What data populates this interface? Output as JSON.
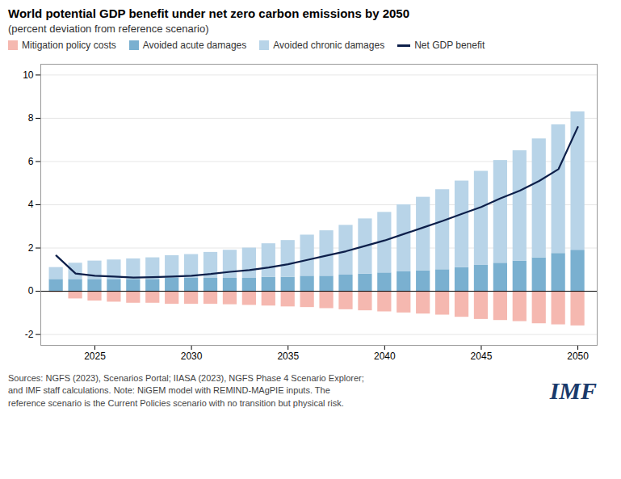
{
  "chart_data": {
    "type": "bar",
    "title": "World potential GDP benefit under net zero carbon emissions by 2050",
    "subtitle": "(percent deviation from reference scenario)",
    "x": [
      2023,
      2024,
      2025,
      2026,
      2027,
      2028,
      2029,
      2030,
      2031,
      2032,
      2033,
      2034,
      2035,
      2036,
      2037,
      2038,
      2039,
      2040,
      2041,
      2042,
      2043,
      2044,
      2045,
      2046,
      2047,
      2048,
      2049,
      2050
    ],
    "series": [
      {
        "name": "Mitigation policy costs",
        "type": "bar",
        "color": "#f5b8b0",
        "values": [
          -0.05,
          -0.35,
          -0.45,
          -0.5,
          -0.55,
          -0.55,
          -0.6,
          -0.6,
          -0.6,
          -0.62,
          -0.65,
          -0.68,
          -0.72,
          -0.75,
          -0.8,
          -0.85,
          -0.9,
          -0.95,
          -1.0,
          -1.05,
          -1.1,
          -1.2,
          -1.3,
          -1.35,
          -1.4,
          -1.5,
          -1.55,
          -1.6
        ]
      },
      {
        "name": "Avoided acute damages",
        "type": "bar",
        "color": "#7ab0d0",
        "values": [
          0.55,
          0.55,
          0.55,
          0.55,
          0.55,
          0.55,
          0.6,
          0.6,
          0.6,
          0.6,
          0.6,
          0.65,
          0.65,
          0.7,
          0.7,
          0.75,
          0.8,
          0.85,
          0.9,
          0.95,
          1.0,
          1.1,
          1.2,
          1.3,
          1.4,
          1.55,
          1.75,
          1.9
        ]
      },
      {
        "name": "Avoided chronic damages",
        "type": "bar",
        "color": "#b8d4e8",
        "values": [
          0.55,
          0.75,
          0.85,
          0.9,
          0.95,
          1.0,
          1.05,
          1.1,
          1.2,
          1.3,
          1.4,
          1.55,
          1.7,
          1.9,
          2.1,
          2.3,
          2.55,
          2.8,
          3.1,
          3.4,
          3.7,
          4.0,
          4.35,
          4.75,
          5.1,
          5.5,
          5.95,
          6.4
        ]
      },
      {
        "name": "Net GDP benefit",
        "type": "line",
        "color": "#0d1f4a",
        "values": [
          1.65,
          0.82,
          0.72,
          0.68,
          0.63,
          0.65,
          0.68,
          0.72,
          0.8,
          0.9,
          0.98,
          1.1,
          1.25,
          1.45,
          1.65,
          1.85,
          2.1,
          2.35,
          2.65,
          2.95,
          3.25,
          3.58,
          3.9,
          4.3,
          4.65,
          5.1,
          5.65,
          7.6
        ]
      }
    ],
    "stacked": true,
    "xlim": [
      2022.2,
      2051.0
    ],
    "xticks": [
      2025,
      2030,
      2035,
      2040,
      2045,
      2050
    ],
    "ylim": [
      -2.5,
      10.5
    ],
    "yticks": [
      -2,
      0,
      2,
      4,
      6,
      8,
      10
    ],
    "grid": true,
    "source": "Sources: NGFS (2023), Scenarios Portal; IIASA (2023), NGFS Phase 4 Scenario Explorer;\nand IMF staff calculations. Note: NiGEM model with REMIND-MAgPIE inputs. The\nreference scenario is the Current Policies scenario with no transition but physical risk.",
    "annotations": [
      {
        "text": "IMF",
        "color": "#1a3a6b"
      }
    ]
  }
}
